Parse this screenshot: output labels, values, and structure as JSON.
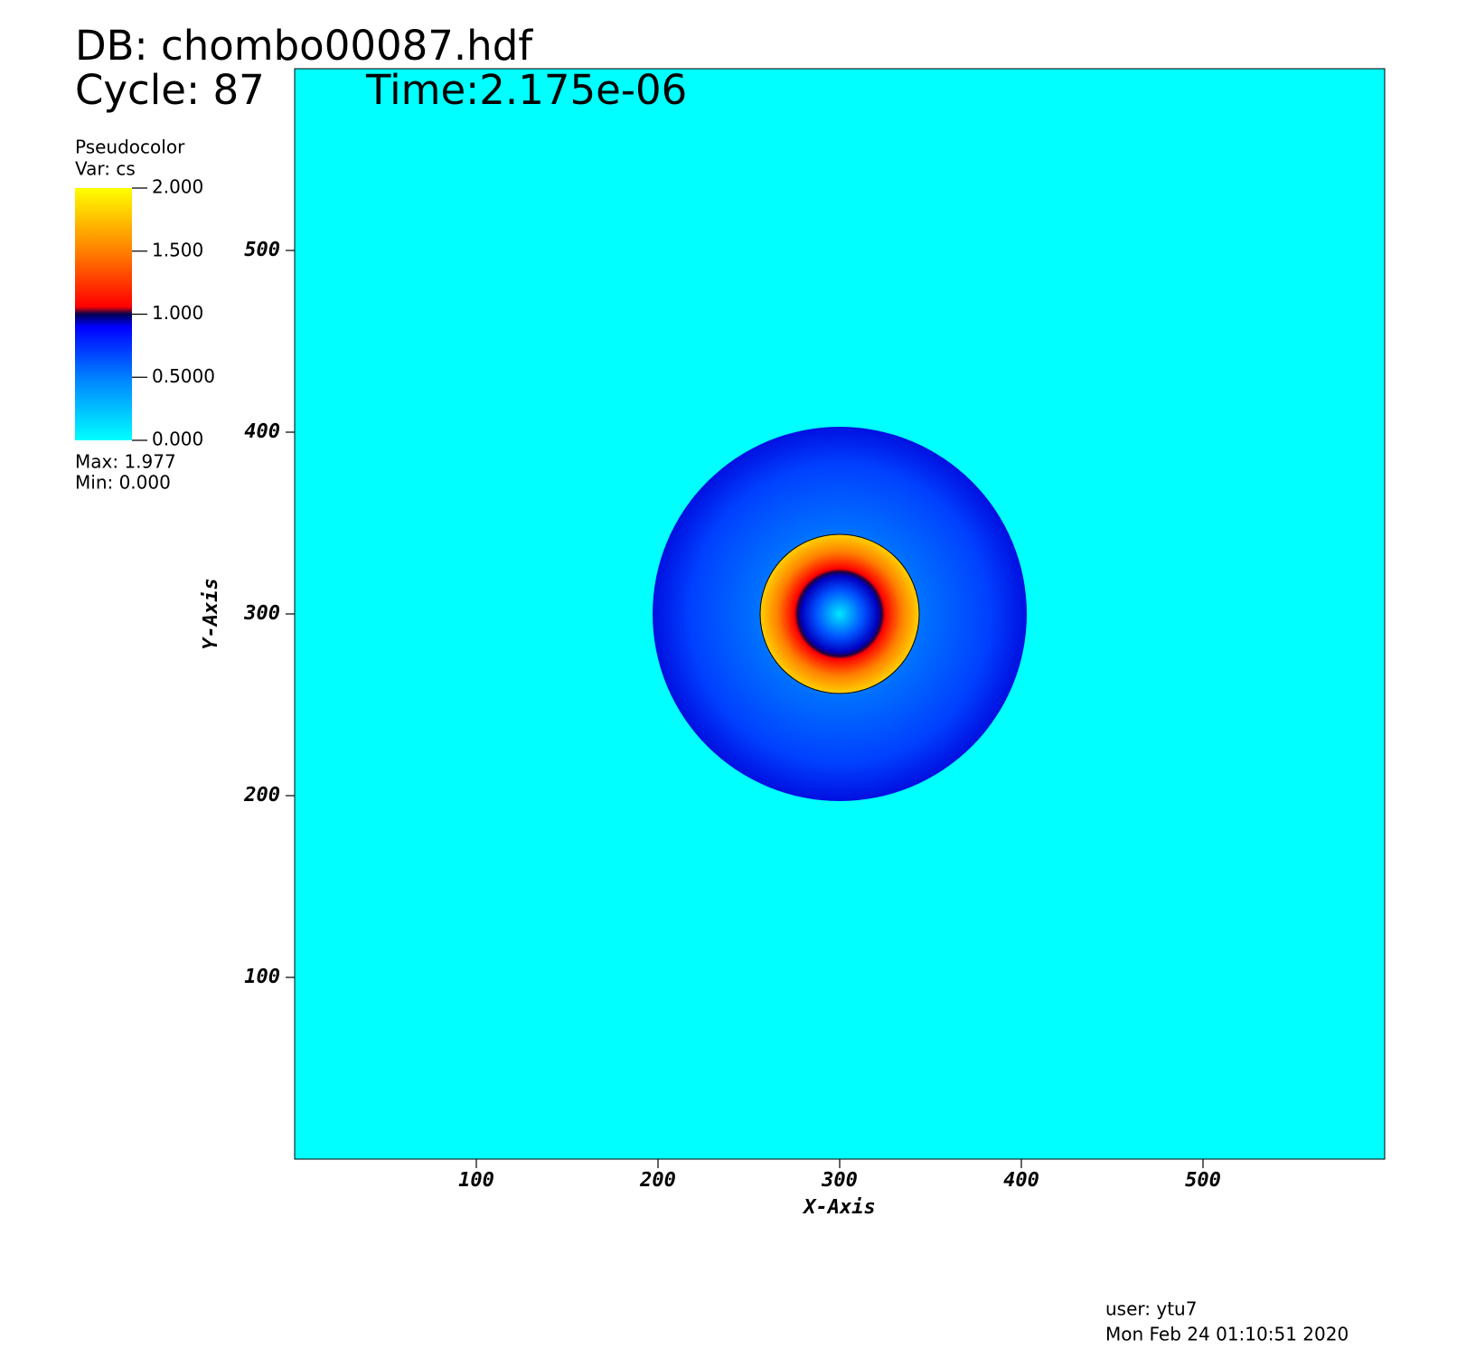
{
  "chart_data": {
    "type": "pseudocolor",
    "title": "DB: chombo00087.hdf",
    "cycle": "Cycle: 87",
    "time": "Time:2.175e-06",
    "legend_title": "Pseudocolor",
    "variable": "Var: cs",
    "max_label": "Max:  1.977",
    "min_label": "Min:  0.000",
    "max": 1.977,
    "min": 0,
    "clim": [
      0,
      2
    ],
    "cticks": [
      {
        "value": 0,
        "label": "0.000"
      },
      {
        "value": 0.5,
        "label": "0.5000"
      },
      {
        "value": 1,
        "label": "1.000"
      },
      {
        "value": 1.5,
        "label": "1.500"
      },
      {
        "value": 2,
        "label": "2.000"
      }
    ],
    "xlabel": "X-Axis",
    "ylabel": "Y-Axis",
    "xlim": [
      0,
      600
    ],
    "ylim": [
      0,
      600
    ],
    "xticks": [
      100,
      200,
      300,
      400,
      500
    ],
    "yticks": [
      100,
      200,
      300,
      400,
      500
    ],
    "user": "user: ytu7",
    "date": "Mon Feb 24 01:10:51 2020"
  }
}
